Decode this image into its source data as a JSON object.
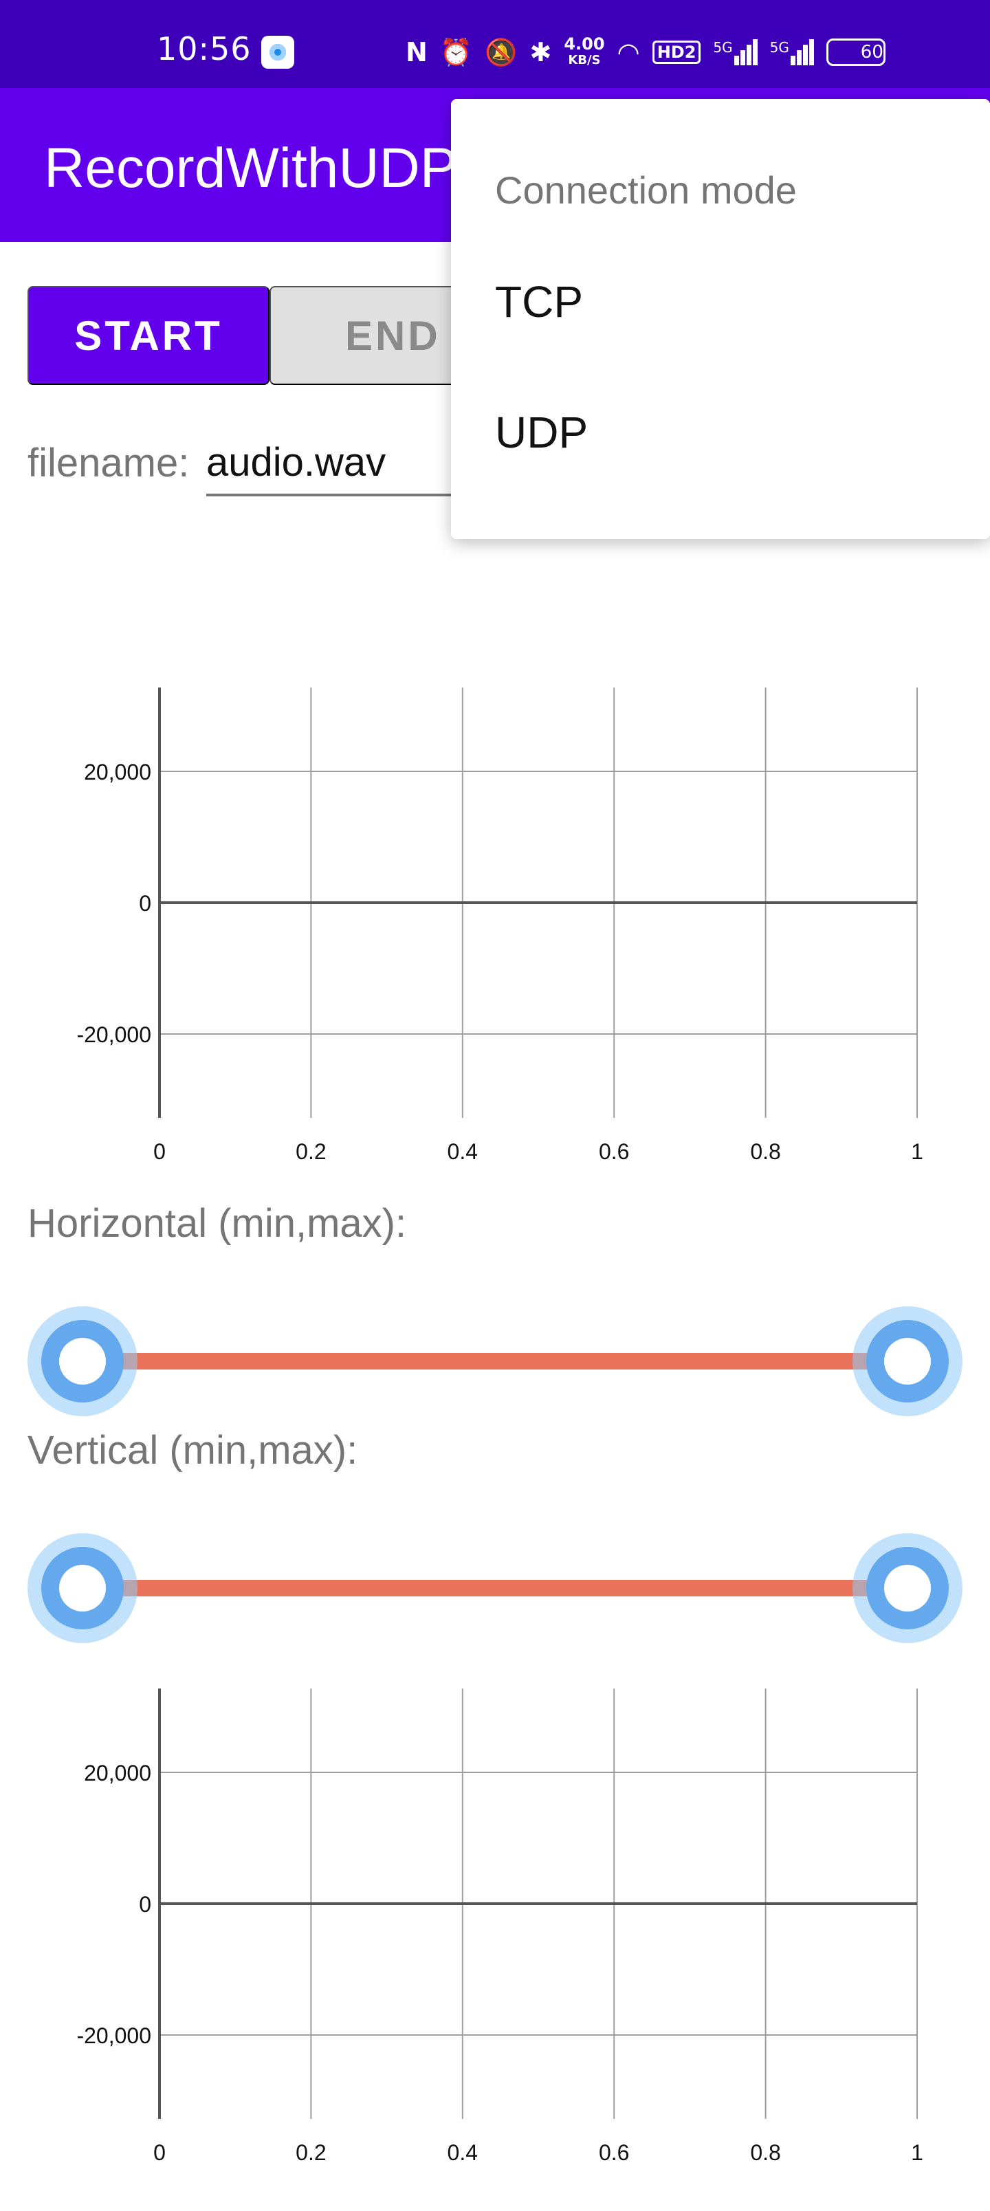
{
  "status_bar": {
    "time": "10:56",
    "nfc_icon": "N",
    "network_speed_value": "4.00",
    "network_speed_unit": "KB/S",
    "hd_badge": "HD2",
    "signal1_label": "5G",
    "signal2_label": "5G",
    "battery_level": "60"
  },
  "app_bar": {
    "title": "RecordWithUDP"
  },
  "toolbar": {
    "start_label": "START",
    "end_label": "END"
  },
  "filename": {
    "label": "filename:",
    "value": "audio.wav"
  },
  "charts": [
    {
      "type": "line",
      "x_ticks": [
        "0",
        "0.2",
        "0.4",
        "0.6",
        "0.8",
        "1"
      ],
      "y_ticks": [
        "20,000",
        "0",
        "-20,000"
      ],
      "xlim": [
        0,
        1
      ],
      "ylim": [
        -32768,
        32767
      ],
      "grid": true
    },
    {
      "type": "line",
      "x_ticks": [
        "0",
        "0.2",
        "0.4",
        "0.6",
        "0.8",
        "1"
      ],
      "y_ticks": [
        "20,000",
        "0",
        "-20,000"
      ],
      "xlim": [
        0,
        1
      ],
      "ylim": [
        -32768,
        32767
      ],
      "grid": true
    }
  ],
  "sliders": {
    "horizontal": {
      "label": "Horizontal (min,max):",
      "min": 0,
      "max": 1,
      "low": 0,
      "high": 1
    },
    "vertical": {
      "label": "Vertical (min,max):",
      "min": 0,
      "max": 1,
      "low": 0,
      "high": 1
    }
  },
  "menu": {
    "header": "Connection mode",
    "items": [
      {
        "label": "TCP"
      },
      {
        "label": "UDP"
      }
    ]
  },
  "colors": {
    "status_bar": "#3d00b8",
    "primary": "#6200ee",
    "slider_track": "#e8735a",
    "slider_thumb": "#64a9ee"
  }
}
